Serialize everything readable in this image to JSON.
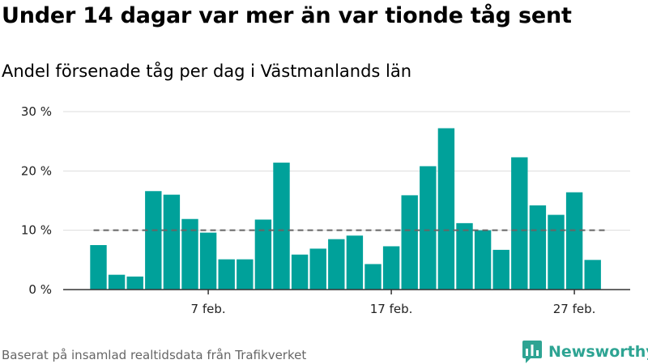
{
  "title": "Under 14 dagar var mer än var tionde tåg sent",
  "subtitle": "Andel försenade tåg per dag i Västmanlands län",
  "source": "Baserat på insamlad realtidsdata från Trafikverket",
  "brand": {
    "name": "Newsworthy",
    "color": "#2ea493",
    "logo_icon": "bar-chart-speech-bubble-icon"
  },
  "colors": {
    "bar": "#00a19a",
    "reference_line": "#666666",
    "grid": "#dddddd",
    "axis": "#333333"
  },
  "chart_data": {
    "type": "bar",
    "categories": [
      "1 feb.",
      "2 feb.",
      "3 feb.",
      "4 feb.",
      "5 feb.",
      "6 feb.",
      "7 feb.",
      "8 feb.",
      "9 feb.",
      "10 feb.",
      "11 feb.",
      "12 feb.",
      "13 feb.",
      "14 feb.",
      "15 feb.",
      "16 feb.",
      "17 feb.",
      "18 feb.",
      "19 feb.",
      "20 feb.",
      "21 feb.",
      "22 feb.",
      "23 feb.",
      "24 feb.",
      "25 feb.",
      "26 feb.",
      "27 feb.",
      "28 feb."
    ],
    "values": [
      7.5,
      2.5,
      2.2,
      16.6,
      16.0,
      11.9,
      9.6,
      5.1,
      5.1,
      11.8,
      21.4,
      5.9,
      6.9,
      8.5,
      9.1,
      4.3,
      7.3,
      15.9,
      20.8,
      27.2,
      11.2,
      10.0,
      6.7,
      22.3,
      14.2,
      12.6,
      16.4,
      5.0
    ],
    "reference_line": {
      "value": 10
    },
    "ylim": [
      0,
      30
    ],
    "yticks": [
      {
        "value": 0,
        "label": "0 %"
      },
      {
        "value": 10,
        "label": "10 %"
      },
      {
        "value": 20,
        "label": "20 %"
      },
      {
        "value": 30,
        "label": "30 %"
      }
    ],
    "xticks": [
      {
        "index": 6,
        "label": "7 feb."
      },
      {
        "index": 16,
        "label": "17 feb."
      },
      {
        "index": 26,
        "label": "27 feb."
      }
    ],
    "xlabel": "",
    "ylabel": "",
    "grid": true,
    "legend": "none"
  }
}
